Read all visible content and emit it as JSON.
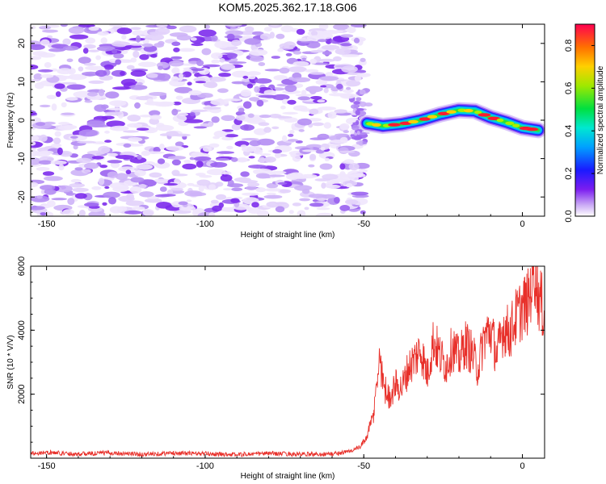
{
  "title": "KOM5.2025.362.17.18.G06",
  "colors": {
    "snr_line": "#e8302a",
    "noise_purple": "#7a1ff0",
    "noise_light": "#d8c8fa"
  },
  "chart_data": [
    {
      "type": "heatmap",
      "name": "spectrogram",
      "xlabel": "Height of straight line (km)",
      "ylabel": "Frequency (Hz)",
      "xlim": [
        -155,
        7
      ],
      "ylim": [
        -25,
        25
      ],
      "x_ticks": [
        -150,
        -100,
        -50,
        0
      ],
      "y_ticks": [
        -20,
        -10,
        0,
        10,
        20
      ],
      "x_tick_labels": [
        "-150",
        "-100",
        "-50",
        "0"
      ],
      "y_tick_labels": [
        "-20",
        "-10",
        "0",
        "10",
        "20"
      ],
      "noise_region_x": [
        -155,
        -50
      ],
      "signal_track": {
        "x": [
          -49,
          -44,
          -38,
          -32,
          -26,
          -20,
          -15,
          -10,
          -5,
          0,
          5
        ],
        "freq": [
          -0.8,
          -1.5,
          -1.0,
          0.0,
          1.5,
          2.6,
          2.4,
          0.7,
          -0.5,
          -2.0,
          -2.6
        ]
      },
      "colorbar": {
        "label": "Normalized spectral amplitude",
        "range": [
          0.0,
          0.9
        ],
        "ticks": [
          0.0,
          0.2,
          0.4,
          0.6,
          0.8
        ],
        "tick_labels": [
          "0.0",
          "0.2",
          "0.4",
          "0.6",
          "0.8"
        ]
      }
    },
    {
      "type": "line",
      "name": "snr",
      "xlabel": "Height of straight line (km)",
      "ylabel": "SNR (10 * V/V)",
      "xlim": [
        -155,
        7
      ],
      "ylim": [
        0,
        6000
      ],
      "x_ticks": [
        -150,
        -100,
        -50,
        0
      ],
      "y_ticks": [
        2000,
        4000,
        6000
      ],
      "x_tick_labels": [
        "-150",
        "-100",
        "-50",
        "0"
      ],
      "y_tick_labels": [
        "2000",
        "4000",
        "6000"
      ],
      "series": [
        {
          "name": "SNR",
          "x": [
            -155,
            -150,
            -140,
            -130,
            -120,
            -110,
            -100,
            -90,
            -80,
            -70,
            -60,
            -55,
            -51,
            -49,
            -47,
            -46,
            -45,
            -44,
            -43,
            -42,
            -40,
            -38,
            -36,
            -34,
            -32,
            -30,
            -28,
            -26,
            -24,
            -22,
            -20,
            -18,
            -16,
            -14,
            -12,
            -10,
            -8,
            -6,
            -4,
            -2,
            0,
            2,
            3,
            4,
            5,
            6,
            7
          ],
          "values": [
            150,
            180,
            130,
            170,
            120,
            160,
            140,
            110,
            150,
            120,
            130,
            200,
            350,
            700,
            1300,
            2200,
            3200,
            2400,
            2100,
            1900,
            2300,
            2200,
            2800,
            3100,
            3400,
            2600,
            3700,
            3200,
            2900,
            3500,
            3100,
            3600,
            3300,
            2800,
            3800,
            4000,
            3200,
            4100,
            3900,
            4400,
            4700,
            4900,
            5600,
            6000,
            5100,
            4800,
            4500
          ]
        }
      ]
    }
  ]
}
